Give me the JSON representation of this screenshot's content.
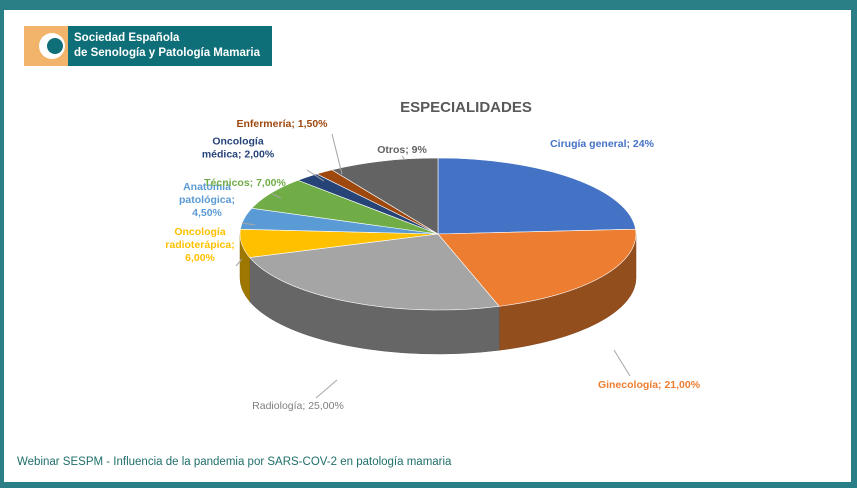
{
  "logo": {
    "line1": "Sociedad Española",
    "line2": "de Senología y Patología Mamaria"
  },
  "chart_data": {
    "type": "pie",
    "title": "ESPECIALIDADES",
    "series": [
      {
        "name": "Cirugía general",
        "value": 24,
        "label_lines": [
          "Cirugía general; 24%"
        ],
        "color": "#4472c4"
      },
      {
        "name": "Ginecología",
        "value": 21,
        "label_lines": [
          "Ginecología; 21,00%"
        ],
        "color": "#ed7d31"
      },
      {
        "name": "Radiología",
        "value": 25,
        "label_lines": [
          "Radiología; 25,00%"
        ],
        "color": "#a5a5a5"
      },
      {
        "name": "Oncología radioterápica",
        "value": 6,
        "label_lines": [
          "Oncología",
          "radioterápica;",
          "6,00%"
        ],
        "color": "#ffc000"
      },
      {
        "name": "Anatomía patológica",
        "value": 4.5,
        "label_lines": [
          "Anatomía",
          "patológica;",
          "4,50%"
        ],
        "color": "#5b9bd5"
      },
      {
        "name": "Técnicos",
        "value": 7,
        "label_lines": [
          "Técnicos; 7,00%"
        ],
        "color": "#70ad47"
      },
      {
        "name": "Oncología médica",
        "value": 2,
        "label_lines": [
          "Oncología",
          "médica; 2,00%"
        ],
        "color": "#264478"
      },
      {
        "name": "Enfermería",
        "value": 1.5,
        "label_lines": [
          "Enfermería; 1,50%"
        ],
        "color": "#9e480e"
      },
      {
        "name": "Otros",
        "value": 9,
        "label_lines": [
          "Otros; 9%"
        ],
        "color": "#636363"
      }
    ]
  },
  "footer": {
    "text": "Webinar SESPM - Influencia de la pandemia por SARS-COV-2 en patología mamaria"
  }
}
